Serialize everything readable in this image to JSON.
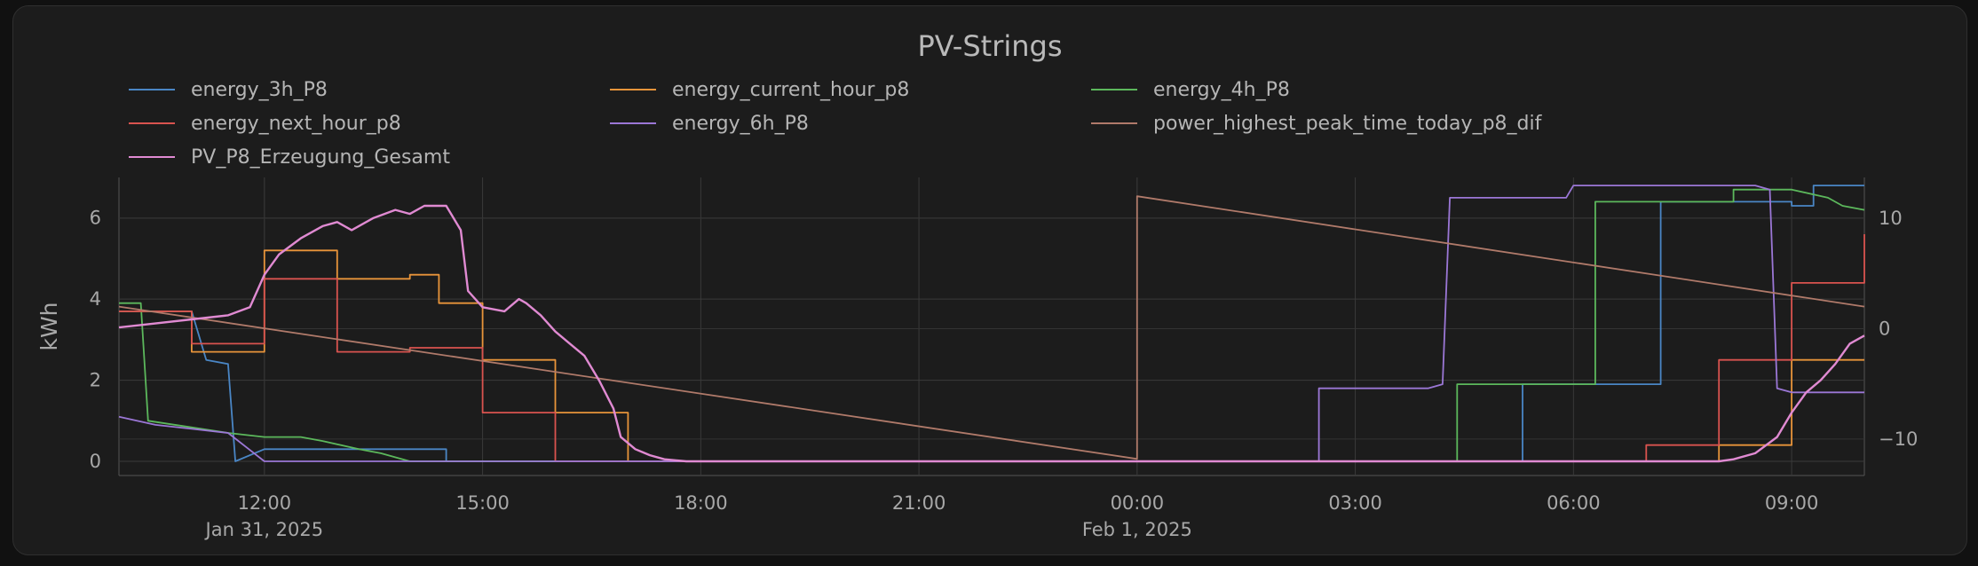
{
  "chart_data": {
    "type": "line",
    "title": "PV-Strings",
    "ylabel": "kWh",
    "y2label": "",
    "ylim": [
      -0.35,
      7.0
    ],
    "y2lim": [
      -13.3,
      13.7
    ],
    "yticks": [
      0,
      2,
      4,
      6
    ],
    "y2ticks": [
      -10,
      0,
      10
    ],
    "xlim": [
      10.0,
      34.0
    ],
    "xticks": [
      {
        "t": 12,
        "label": "12:00",
        "sub": "Jan 31, 2025"
      },
      {
        "t": 15,
        "label": "15:00",
        "sub": ""
      },
      {
        "t": 18,
        "label": "18:00",
        "sub": ""
      },
      {
        "t": 21,
        "label": "21:00",
        "sub": ""
      },
      {
        "t": 24,
        "label": "00:00",
        "sub": "Feb 1, 2025"
      },
      {
        "t": 27,
        "label": "03:00",
        "sub": ""
      },
      {
        "t": 30,
        "label": "06:00",
        "sub": ""
      },
      {
        "t": 33,
        "label": "09:00",
        "sub": ""
      }
    ],
    "grid": true,
    "legend_position": "top",
    "x_unit_note": "x in hours from Jan 31, 2025 00:00",
    "series": [
      {
        "name": "energy_3h_P8",
        "color": "#4a86c5",
        "axis": "left",
        "step": true,
        "points": [
          [
            10,
            3.7
          ],
          [
            11,
            3.7
          ],
          [
            11.2,
            2.5
          ],
          [
            11.5,
            2.4
          ],
          [
            11.6,
            0
          ],
          [
            12,
            0.3
          ],
          [
            14.5,
            0.3
          ],
          [
            14.5,
            0
          ],
          [
            29.3,
            0
          ],
          [
            29.3,
            1.9
          ],
          [
            31.2,
            1.9
          ],
          [
            31.2,
            6.4
          ],
          [
            33,
            6.4
          ],
          [
            33,
            6.3
          ],
          [
            33.3,
            6.3
          ],
          [
            33.3,
            6.8
          ],
          [
            34,
            6.8
          ]
        ]
      },
      {
        "name": "energy_current_hour_p8",
        "color": "#e8943a",
        "axis": "left",
        "step": true,
        "points": [
          [
            10,
            3.7
          ],
          [
            11,
            3.7
          ],
          [
            11,
            2.7
          ],
          [
            12,
            2.7
          ],
          [
            12,
            5.2
          ],
          [
            13,
            5.2
          ],
          [
            13,
            4.5
          ],
          [
            14,
            4.5
          ],
          [
            14,
            4.6
          ],
          [
            14.4,
            4.6
          ],
          [
            14.4,
            3.9
          ],
          [
            15,
            3.9
          ],
          [
            15,
            2.5
          ],
          [
            16,
            2.5
          ],
          [
            16,
            1.2
          ],
          [
            17,
            1.2
          ],
          [
            17,
            0
          ],
          [
            32,
            0
          ],
          [
            32,
            0.4
          ],
          [
            33,
            0.4
          ],
          [
            33,
            2.5
          ],
          [
            34,
            2.5
          ]
        ]
      },
      {
        "name": "energy_4h_P8",
        "color": "#5cb85c",
        "axis": "left",
        "step": true,
        "points": [
          [
            10,
            3.9
          ],
          [
            10.3,
            3.9
          ],
          [
            10.4,
            1.0
          ],
          [
            11.5,
            0.7
          ],
          [
            12,
            0.6
          ],
          [
            12.5,
            0.6
          ],
          [
            12.8,
            0.5
          ],
          [
            13.3,
            0.3
          ],
          [
            13.6,
            0.2
          ],
          [
            14,
            0
          ],
          [
            28.4,
            0
          ],
          [
            28.4,
            1.9
          ],
          [
            30.3,
            1.9
          ],
          [
            30.3,
            6.4
          ],
          [
            32.2,
            6.4
          ],
          [
            32.2,
            6.7
          ],
          [
            33,
            6.7
          ],
          [
            33.5,
            6.5
          ],
          [
            33.7,
            6.3
          ],
          [
            34,
            6.2
          ]
        ]
      },
      {
        "name": "energy_next_hour_p8",
        "color": "#d9534f",
        "axis": "left",
        "step": true,
        "points": [
          [
            10,
            3.7
          ],
          [
            11,
            3.7
          ],
          [
            11,
            2.9
          ],
          [
            12,
            2.9
          ],
          [
            12,
            4.5
          ],
          [
            13,
            4.5
          ],
          [
            13,
            2.7
          ],
          [
            14,
            2.7
          ],
          [
            14,
            2.8
          ],
          [
            15,
            2.8
          ],
          [
            15,
            1.2
          ],
          [
            16,
            1.2
          ],
          [
            16,
            0
          ],
          [
            31,
            0
          ],
          [
            31,
            0.4
          ],
          [
            32,
            0.4
          ],
          [
            32,
            2.5
          ],
          [
            33,
            2.5
          ],
          [
            33,
            4.4
          ],
          [
            34,
            4.4
          ],
          [
            34,
            5.6
          ]
        ]
      },
      {
        "name": "energy_6h_P8",
        "color": "#9b77d6",
        "axis": "left",
        "step": true,
        "points": [
          [
            10,
            1.1
          ],
          [
            10.5,
            0.9
          ],
          [
            11,
            0.8
          ],
          [
            11.5,
            0.7
          ],
          [
            12,
            0
          ],
          [
            26.5,
            0
          ],
          [
            26.5,
            1.8
          ],
          [
            28,
            1.8
          ],
          [
            28.2,
            1.9
          ],
          [
            28.3,
            6.5
          ],
          [
            29.9,
            6.5
          ],
          [
            30,
            6.8
          ],
          [
            32.5,
            6.8
          ],
          [
            32.7,
            6.7
          ],
          [
            32.8,
            1.8
          ],
          [
            33,
            1.7
          ],
          [
            34,
            1.7
          ]
        ]
      },
      {
        "name": "power_highest_peak_time_today_p8_dif",
        "color": "#b07a6a",
        "axis": "right",
        "step": false,
        "points": [
          [
            10,
            2.0
          ],
          [
            24,
            -11.8
          ],
          [
            24,
            12.0
          ],
          [
            34,
            2.0
          ]
        ]
      },
      {
        "name": "PV_P8_Erzeugung_Gesamt",
        "color": "#e08ad2",
        "axis": "left",
        "step": false,
        "points": [
          [
            10,
            3.3
          ],
          [
            10.5,
            3.4
          ],
          [
            11,
            3.5
          ],
          [
            11.5,
            3.6
          ],
          [
            11.8,
            3.8
          ],
          [
            12.0,
            4.6
          ],
          [
            12.2,
            5.1
          ],
          [
            12.5,
            5.5
          ],
          [
            12.8,
            5.8
          ],
          [
            13.0,
            5.9
          ],
          [
            13.2,
            5.7
          ],
          [
            13.5,
            6.0
          ],
          [
            13.8,
            6.2
          ],
          [
            14.0,
            6.1
          ],
          [
            14.2,
            6.3
          ],
          [
            14.5,
            6.3
          ],
          [
            14.7,
            5.7
          ],
          [
            14.8,
            4.2
          ],
          [
            15.0,
            3.8
          ],
          [
            15.3,
            3.7
          ],
          [
            15.5,
            4.0
          ],
          [
            15.6,
            3.9
          ],
          [
            15.8,
            3.6
          ],
          [
            16.0,
            3.2
          ],
          [
            16.2,
            2.9
          ],
          [
            16.4,
            2.6
          ],
          [
            16.6,
            2.0
          ],
          [
            16.8,
            1.3
          ],
          [
            16.9,
            0.6
          ],
          [
            17.1,
            0.3
          ],
          [
            17.3,
            0.15
          ],
          [
            17.5,
            0.05
          ],
          [
            17.8,
            0
          ],
          [
            32,
            0
          ],
          [
            32.2,
            0.05
          ],
          [
            32.5,
            0.2
          ],
          [
            32.8,
            0.6
          ],
          [
            33.0,
            1.2
          ],
          [
            33.2,
            1.7
          ],
          [
            33.4,
            2.0
          ],
          [
            33.6,
            2.4
          ],
          [
            33.8,
            2.9
          ],
          [
            34,
            3.1
          ]
        ]
      }
    ]
  }
}
